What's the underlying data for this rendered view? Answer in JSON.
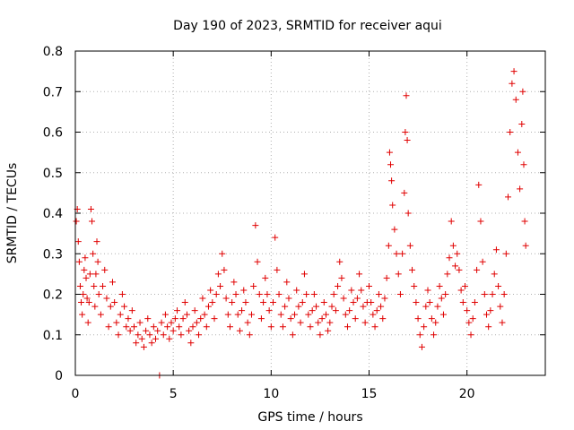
{
  "chart_data": {
    "type": "scatter",
    "title": "Day 190 of 2023, SRMTID for receiver aqui",
    "xlabel": "GPS time / hours",
    "ylabel": "SRMTID / TECUs",
    "xlim": [
      0,
      24
    ],
    "ylim": [
      0,
      0.8
    ],
    "x_ticks": [
      0,
      5,
      10,
      15,
      20
    ],
    "x_tick_labels": [
      "0",
      "5",
      "10",
      "15",
      "20"
    ],
    "y_ticks": [
      0,
      0.1,
      0.2,
      0.3,
      0.4,
      0.5,
      0.6,
      0.7,
      0.8
    ],
    "y_tick_labels": [
      "0",
      "0.1",
      "0.2",
      "0.3",
      "0.4",
      "0.5",
      "0.6",
      "0.7",
      "0.8"
    ],
    "grid": true,
    "marker": "+",
    "color": "#e00000",
    "series": [
      {
        "name": "SRMTID",
        "points": [
          [
            0.05,
            0.38
          ],
          [
            0.1,
            0.41
          ],
          [
            0.15,
            0.33
          ],
          [
            0.2,
            0.28
          ],
          [
            0.25,
            0.22
          ],
          [
            0.3,
            0.18
          ],
          [
            0.35,
            0.15
          ],
          [
            0.4,
            0.2
          ],
          [
            0.45,
            0.26
          ],
          [
            0.5,
            0.29
          ],
          [
            0.55,
            0.24
          ],
          [
            0.6,
            0.19
          ],
          [
            0.65,
            0.13
          ],
          [
            0.7,
            0.18
          ],
          [
            0.75,
            0.25
          ],
          [
            0.8,
            0.41
          ],
          [
            0.85,
            0.38
          ],
          [
            0.9,
            0.3
          ],
          [
            0.95,
            0.22
          ],
          [
            1.0,
            0.17
          ],
          [
            1.05,
            0.25
          ],
          [
            1.1,
            0.33
          ],
          [
            1.15,
            0.28
          ],
          [
            1.2,
            0.2
          ],
          [
            1.3,
            0.15
          ],
          [
            1.4,
            0.22
          ],
          [
            1.5,
            0.26
          ],
          [
            1.6,
            0.19
          ],
          [
            1.7,
            0.12
          ],
          [
            1.8,
            0.17
          ],
          [
            1.9,
            0.23
          ],
          [
            2.0,
            0.18
          ],
          [
            2.1,
            0.13
          ],
          [
            2.2,
            0.1
          ],
          [
            2.3,
            0.15
          ],
          [
            2.4,
            0.2
          ],
          [
            2.5,
            0.17
          ],
          [
            2.6,
            0.12
          ],
          [
            2.7,
            0.14
          ],
          [
            2.8,
            0.11
          ],
          [
            2.9,
            0.16
          ],
          [
            3.0,
            0.12
          ],
          [
            3.1,
            0.08
          ],
          [
            3.2,
            0.1
          ],
          [
            3.3,
            0.13
          ],
          [
            3.4,
            0.09
          ],
          [
            3.5,
            0.07
          ],
          [
            3.6,
            0.11
          ],
          [
            3.7,
            0.14
          ],
          [
            3.8,
            0.1
          ],
          [
            3.9,
            0.08
          ],
          [
            4.0,
            0.12
          ],
          [
            4.1,
            0.09
          ],
          [
            4.2,
            0.11
          ],
          [
            4.3,
            0.0
          ],
          [
            4.4,
            0.13
          ],
          [
            4.5,
            0.1
          ],
          [
            4.6,
            0.15
          ],
          [
            4.7,
            0.12
          ],
          [
            4.8,
            0.09
          ],
          [
            4.9,
            0.13
          ],
          [
            5.0,
            0.11
          ],
          [
            5.1,
            0.14
          ],
          [
            5.2,
            0.16
          ],
          [
            5.3,
            0.12
          ],
          [
            5.4,
            0.1
          ],
          [
            5.5,
            0.14
          ],
          [
            5.6,
            0.18
          ],
          [
            5.7,
            0.15
          ],
          [
            5.8,
            0.11
          ],
          [
            5.9,
            0.08
          ],
          [
            6.0,
            0.12
          ],
          [
            6.1,
            0.16
          ],
          [
            6.2,
            0.13
          ],
          [
            6.3,
            0.1
          ],
          [
            6.4,
            0.14
          ],
          [
            6.5,
            0.19
          ],
          [
            6.6,
            0.15
          ],
          [
            6.7,
            0.12
          ],
          [
            6.8,
            0.17
          ],
          [
            6.9,
            0.21
          ],
          [
            7.0,
            0.18
          ],
          [
            7.1,
            0.14
          ],
          [
            7.2,
            0.2
          ],
          [
            7.3,
            0.25
          ],
          [
            7.4,
            0.22
          ],
          [
            7.5,
            0.3
          ],
          [
            7.6,
            0.26
          ],
          [
            7.7,
            0.19
          ],
          [
            7.8,
            0.15
          ],
          [
            7.9,
            0.12
          ],
          [
            8.0,
            0.18
          ],
          [
            8.1,
            0.23
          ],
          [
            8.2,
            0.2
          ],
          [
            8.3,
            0.15
          ],
          [
            8.4,
            0.11
          ],
          [
            8.5,
            0.16
          ],
          [
            8.6,
            0.21
          ],
          [
            8.7,
            0.18
          ],
          [
            8.8,
            0.13
          ],
          [
            8.9,
            0.1
          ],
          [
            9.0,
            0.15
          ],
          [
            9.1,
            0.22
          ],
          [
            9.2,
            0.37
          ],
          [
            9.3,
            0.28
          ],
          [
            9.4,
            0.2
          ],
          [
            9.5,
            0.14
          ],
          [
            9.6,
            0.18
          ],
          [
            9.7,
            0.24
          ],
          [
            9.8,
            0.2
          ],
          [
            9.9,
            0.16
          ],
          [
            10.0,
            0.12
          ],
          [
            10.1,
            0.18
          ],
          [
            10.2,
            0.34
          ],
          [
            10.3,
            0.26
          ],
          [
            10.4,
            0.2
          ],
          [
            10.5,
            0.15
          ],
          [
            10.6,
            0.12
          ],
          [
            10.7,
            0.17
          ],
          [
            10.8,
            0.23
          ],
          [
            10.9,
            0.19
          ],
          [
            11.0,
            0.14
          ],
          [
            11.1,
            0.1
          ],
          [
            11.2,
            0.15
          ],
          [
            11.3,
            0.21
          ],
          [
            11.4,
            0.17
          ],
          [
            11.5,
            0.13
          ],
          [
            11.6,
            0.18
          ],
          [
            11.7,
            0.25
          ],
          [
            11.8,
            0.2
          ],
          [
            11.9,
            0.15
          ],
          [
            12.0,
            0.12
          ],
          [
            12.1,
            0.16
          ],
          [
            12.2,
            0.2
          ],
          [
            12.3,
            0.17
          ],
          [
            12.4,
            0.13
          ],
          [
            12.5,
            0.1
          ],
          [
            12.6,
            0.14
          ],
          [
            12.7,
            0.18
          ],
          [
            12.8,
            0.15
          ],
          [
            12.9,
            0.11
          ],
          [
            13.0,
            0.13
          ],
          [
            13.1,
            0.17
          ],
          [
            13.2,
            0.2
          ],
          [
            13.3,
            0.16
          ],
          [
            13.4,
            0.22
          ],
          [
            13.5,
            0.28
          ],
          [
            13.6,
            0.24
          ],
          [
            13.7,
            0.19
          ],
          [
            13.8,
            0.15
          ],
          [
            13.9,
            0.12
          ],
          [
            14.0,
            0.16
          ],
          [
            14.1,
            0.21
          ],
          [
            14.2,
            0.18
          ],
          [
            14.3,
            0.14
          ],
          [
            14.4,
            0.19
          ],
          [
            14.5,
            0.25
          ],
          [
            14.6,
            0.21
          ],
          [
            14.7,
            0.17
          ],
          [
            14.8,
            0.13
          ],
          [
            14.9,
            0.18
          ],
          [
            15.0,
            0.22
          ],
          [
            15.1,
            0.18
          ],
          [
            15.2,
            0.15
          ],
          [
            15.3,
            0.12
          ],
          [
            15.4,
            0.16
          ],
          [
            15.5,
            0.2
          ],
          [
            15.6,
            0.17
          ],
          [
            15.7,
            0.14
          ],
          [
            15.8,
            0.19
          ],
          [
            15.9,
            0.24
          ],
          [
            16.0,
            0.32
          ],
          [
            16.05,
            0.55
          ],
          [
            16.1,
            0.52
          ],
          [
            16.15,
            0.48
          ],
          [
            16.2,
            0.42
          ],
          [
            16.3,
            0.36
          ],
          [
            16.4,
            0.3
          ],
          [
            16.5,
            0.25
          ],
          [
            16.6,
            0.2
          ],
          [
            16.7,
            0.3
          ],
          [
            16.8,
            0.45
          ],
          [
            16.85,
            0.6
          ],
          [
            16.9,
            0.69
          ],
          [
            16.95,
            0.58
          ],
          [
            17.0,
            0.4
          ],
          [
            17.1,
            0.32
          ],
          [
            17.2,
            0.26
          ],
          [
            17.3,
            0.22
          ],
          [
            17.4,
            0.18
          ],
          [
            17.5,
            0.14
          ],
          [
            17.6,
            0.1
          ],
          [
            17.7,
            0.07
          ],
          [
            17.8,
            0.12
          ],
          [
            17.9,
            0.17
          ],
          [
            18.0,
            0.21
          ],
          [
            18.1,
            0.18
          ],
          [
            18.2,
            0.14
          ],
          [
            18.3,
            0.1
          ],
          [
            18.4,
            0.13
          ],
          [
            18.5,
            0.17
          ],
          [
            18.6,
            0.22
          ],
          [
            18.7,
            0.19
          ],
          [
            18.8,
            0.15
          ],
          [
            18.9,
            0.2
          ],
          [
            19.0,
            0.25
          ],
          [
            19.1,
            0.29
          ],
          [
            19.2,
            0.38
          ],
          [
            19.3,
            0.32
          ],
          [
            19.4,
            0.27
          ],
          [
            19.5,
            0.3
          ],
          [
            19.6,
            0.26
          ],
          [
            19.7,
            0.21
          ],
          [
            19.8,
            0.18
          ],
          [
            19.9,
            0.22
          ],
          [
            20.0,
            0.16
          ],
          [
            20.1,
            0.13
          ],
          [
            20.2,
            0.1
          ],
          [
            20.3,
            0.14
          ],
          [
            20.4,
            0.18
          ],
          [
            20.5,
            0.26
          ],
          [
            20.6,
            0.47
          ],
          [
            20.7,
            0.38
          ],
          [
            20.8,
            0.28
          ],
          [
            20.9,
            0.2
          ],
          [
            21.0,
            0.15
          ],
          [
            21.1,
            0.12
          ],
          [
            21.2,
            0.16
          ],
          [
            21.3,
            0.2
          ],
          [
            21.4,
            0.25
          ],
          [
            21.5,
            0.31
          ],
          [
            21.6,
            0.22
          ],
          [
            21.7,
            0.17
          ],
          [
            21.8,
            0.13
          ],
          [
            21.9,
            0.2
          ],
          [
            22.0,
            0.3
          ],
          [
            22.1,
            0.44
          ],
          [
            22.2,
            0.6
          ],
          [
            22.3,
            0.72
          ],
          [
            22.4,
            0.75
          ],
          [
            22.5,
            0.68
          ],
          [
            22.6,
            0.55
          ],
          [
            22.7,
            0.46
          ],
          [
            22.8,
            0.62
          ],
          [
            22.85,
            0.7
          ],
          [
            22.9,
            0.52
          ],
          [
            22.95,
            0.38
          ],
          [
            23.0,
            0.32
          ]
        ]
      }
    ]
  }
}
